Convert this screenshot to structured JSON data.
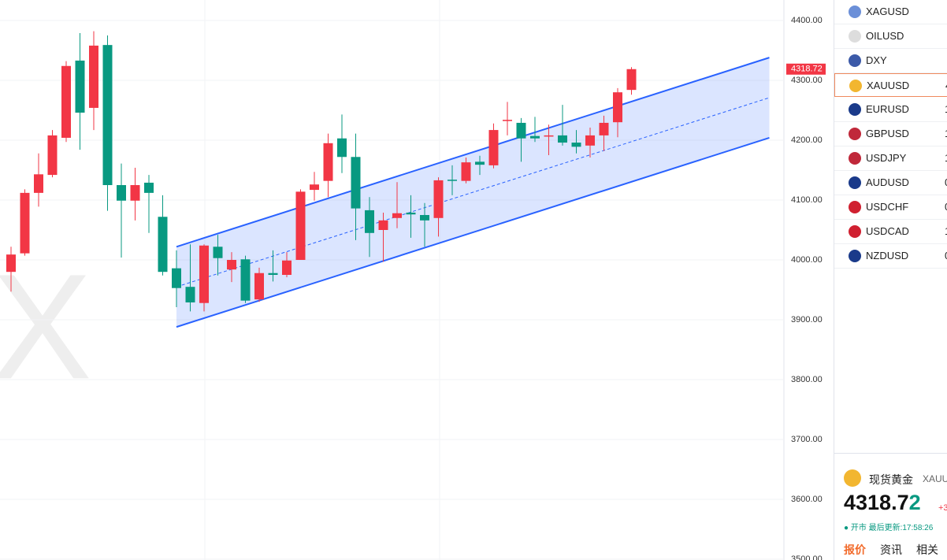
{
  "chart_data": {
    "type": "candlestick",
    "categories": [
      null,
      null,
      null,
      null,
      null,
      null,
      null,
      null,
      null,
      null,
      null,
      null,
      null,
      null,
      null,
      null,
      null,
      null,
      null,
      null,
      null,
      null,
      null,
      null,
      null,
      null,
      null,
      null,
      null,
      null,
      null,
      null,
      null,
      null,
      null,
      null,
      null,
      null,
      null,
      null,
      null,
      null,
      null,
      null,
      null,
      null
    ],
    "open": [
      3980,
      4011,
      4112,
      4142,
      4204,
      4333,
      4254,
      4359,
      4125,
      4099,
      4129,
      4072,
      3986,
      3955,
      3928,
      4022,
      3984,
      4001,
      3934,
      3978,
      3975,
      4000,
      4117,
      4132,
      4203,
      4172,
      4083,
      4050,
      4070,
      4079,
      4075,
      4070,
      4134,
      4132,
      4164,
      4158,
      4232,
      4229,
      4207,
      4207,
      4208,
      4196,
      4191,
      4208,
      4230,
      4284
    ],
    "high": [
      4022,
      4118,
      4178,
      4217,
      4332,
      4379,
      4382,
      4375,
      4161,
      4154,
      4142,
      4108,
      4016,
      4026,
      4026,
      4042,
      4013,
      4007,
      3987,
      4016,
      4013,
      4118,
      4147,
      4211,
      4243,
      4211,
      4105,
      4079,
      4130,
      4108,
      4095,
      4138,
      4158,
      4171,
      4174,
      4228,
      4264,
      4237,
      4239,
      4226,
      4259,
      4217,
      4221,
      4241,
      4287,
      4322
    ],
    "low": [
      3947,
      4007,
      4089,
      4138,
      4197,
      4184,
      4217,
      4082,
      4004,
      4066,
      4045,
      3974,
      3921,
      3914,
      3914,
      3974,
      3963,
      3928,
      3930,
      3964,
      3971,
      4000,
      4099,
      4105,
      4145,
      4033,
      4005,
      3997,
      4053,
      4037,
      4022,
      4039,
      4108,
      4128,
      4142,
      4153,
      4208,
      4164,
      4197,
      4175,
      4191,
      4178,
      4171,
      4182,
      4205,
      4276
    ],
    "close": [
      4009,
      4112,
      4143,
      4208,
      4324,
      4246,
      4358,
      4125,
      4099,
      4125,
      4112,
      3980,
      3953,
      3929,
      4024,
      4003,
      4000,
      3932,
      3978,
      3975,
      3999,
      4114,
      4126,
      4195,
      4172,
      4086,
      4045,
      4066,
      4078,
      4076,
      4066,
      4133,
      4132,
      4163,
      4159,
      4217,
      4234,
      4203,
      4203,
      4208,
      4196,
      4189,
      4208,
      4229,
      4280,
      4318.72
    ],
    "up_color": "#f23645",
    "down_color": "#089981",
    "ylim": [
      3500,
      4434.2
    ],
    "yticks": [
      {
        "value": 3500,
        "label": "3500.00"
      },
      {
        "value": 3600,
        "label": "3600.00"
      },
      {
        "value": 3700,
        "label": "3700.00"
      },
      {
        "value": 3800,
        "label": "3800.00"
      },
      {
        "value": 3900,
        "label": "3900.00"
      },
      {
        "value": 4000,
        "label": "4000.00"
      },
      {
        "value": 4100,
        "label": "4100.00"
      },
      {
        "value": 4200,
        "label": "4200.00"
      },
      {
        "value": 4300,
        "label": "4300.00"
      },
      {
        "value": 4400,
        "label": "4400.00"
      }
    ],
    "grid": true,
    "last_price": 4318.72,
    "channel": {
      "start_index": 12,
      "end_index": 55,
      "upper": [
        4022,
        4338
      ],
      "lower": [
        3888,
        4204
      ],
      "color": "#2962ff"
    }
  },
  "watchlist": [
    {
      "symbol": "XAGUSD",
      "price": null
    },
    {
      "symbol": "OILUSD",
      "price": null
    },
    {
      "symbol": "DXY",
      "price": null
    },
    {
      "symbol": "XAUUSD",
      "price": "4"
    },
    {
      "symbol": "EURUSD",
      "price": "1"
    },
    {
      "symbol": "GBPUSD",
      "price": "1"
    },
    {
      "symbol": "USDJPY",
      "price": "1"
    },
    {
      "symbol": "AUDUSD",
      "price": "0"
    },
    {
      "symbol": "USDCHF",
      "price": "0"
    },
    {
      "symbol": "USDCAD",
      "price": "1"
    },
    {
      "symbol": "NZDUSD",
      "price": "0"
    }
  ],
  "quote": {
    "name": "现货黄金",
    "code": "XAUU",
    "price": "4318.72",
    "change": "+3",
    "status": "● 开市 最后更新:17:58:26",
    "tabs": [
      "报价",
      "资讯",
      "相关品"
    ]
  }
}
